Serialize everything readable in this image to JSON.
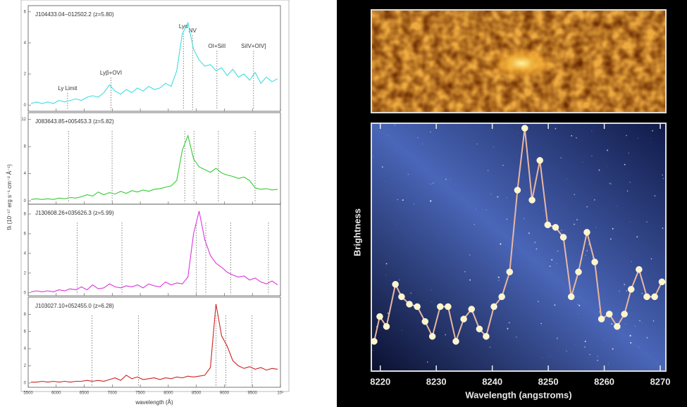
{
  "chart_data": [
    {
      "type": "line",
      "title": "J104433.04−012502.2 (z=5.80)",
      "ylabel": "fλ (10⁻¹⁷ erg s⁻¹ cm⁻² Å⁻¹)",
      "color": "#3fdede",
      "x": [
        5550,
        5650,
        5750,
        5850,
        5950,
        6050,
        6150,
        6250,
        6350,
        6450,
        6550,
        6650,
        6750,
        6850,
        6950,
        7050,
        7150,
        7250,
        7350,
        7450,
        7550,
        7650,
        7750,
        7850,
        7950,
        8050,
        8150,
        8250,
        8350,
        8450,
        8550,
        8650,
        8750,
        8850,
        8950,
        9050,
        9150,
        9250,
        9350,
        9450,
        9550,
        9650,
        9750,
        9850,
        9950
      ],
      "values": [
        0.1,
        0.2,
        0.1,
        0.2,
        0.1,
        0.3,
        0.2,
        0.3,
        0.4,
        0.3,
        0.5,
        0.6,
        0.5,
        0.8,
        1.3,
        0.9,
        0.7,
        1.0,
        0.8,
        1.1,
        0.9,
        1.2,
        1.0,
        1.1,
        1.4,
        1.2,
        2.2,
        4.6,
        5.3,
        3.6,
        2.9,
        2.5,
        2.6,
        2.2,
        2.4,
        1.9,
        2.3,
        1.8,
        2.0,
        1.6,
        2.1,
        1.4,
        1.8,
        1.5,
        1.7
      ],
      "xlim": [
        5500,
        10000
      ],
      "xticks": [
        5500,
        6000,
        6500,
        7000,
        7500,
        8000,
        8500,
        9000,
        9500,
        10000
      ],
      "ylim": [
        -0.4,
        6.4
      ],
      "yticks": [
        0,
        2,
        4,
        6
      ],
      "markers": [
        6202,
        6977,
        8269,
        8432,
        8867,
        9520
      ],
      "marker_labels": [
        "Ly Limit",
        "Lyβ+OVI",
        "Lyα",
        "NV",
        "OI+SiII",
        "SiIV+OIV]"
      ]
    },
    {
      "type": "line",
      "title": "J083643.85+005453.3 (z=5.82)",
      "color": "#33cc33",
      "x": [
        5550,
        5650,
        5750,
        5850,
        5950,
        6050,
        6150,
        6250,
        6350,
        6450,
        6550,
        6650,
        6750,
        6850,
        6950,
        7050,
        7150,
        7250,
        7350,
        7450,
        7550,
        7650,
        7750,
        7850,
        7950,
        8050,
        8150,
        8250,
        8350,
        8450,
        8550,
        8650,
        8750,
        8850,
        8950,
        9050,
        9150,
        9250,
        9350,
        9450,
        9550,
        9650,
        9750,
        9850,
        9950
      ],
      "values": [
        0.2,
        0.3,
        0.2,
        0.3,
        0.2,
        0.4,
        0.3,
        0.5,
        0.4,
        0.6,
        0.9,
        0.7,
        1.3,
        0.9,
        1.2,
        1.0,
        1.4,
        1.1,
        1.5,
        1.3,
        1.6,
        1.4,
        1.7,
        1.8,
        2.0,
        2.2,
        3.0,
        7.5,
        9.6,
        6.2,
        5.0,
        4.6,
        4.2,
        4.8,
        4.1,
        3.8,
        3.6,
        3.3,
        3.5,
        3.0,
        1.9,
        1.7,
        1.8,
        1.6,
        1.7
      ],
      "xlim": [
        5500,
        10000
      ],
      "xticks": [
        5500,
        6000,
        6500,
        7000,
        7500,
        8000,
        8500,
        9000,
        9500,
        10000
      ],
      "ylim": [
        -0.5,
        13
      ],
      "yticks": [
        0,
        4,
        8,
        12
      ],
      "markers": [
        6220,
        6997,
        8293,
        8457,
        8893,
        9548
      ]
    },
    {
      "type": "line",
      "title": "J130608.26+035626.3 (z=5.99)",
      "color": "#dd33dd",
      "x": [
        5550,
        5650,
        5750,
        5850,
        5950,
        6050,
        6150,
        6250,
        6350,
        6450,
        6550,
        6650,
        6750,
        6850,
        6950,
        7050,
        7150,
        7250,
        7350,
        7450,
        7550,
        7650,
        7750,
        7850,
        7950,
        8050,
        8150,
        8250,
        8350,
        8450,
        8550,
        8650,
        8750,
        8850,
        8950,
        9050,
        9150,
        9250,
        9350,
        9450,
        9550,
        9650,
        9750,
        9850,
        9950
      ],
      "values": [
        0.1,
        0.2,
        0.1,
        0.2,
        0.1,
        0.3,
        0.2,
        0.4,
        0.3,
        0.6,
        0.3,
        0.8,
        0.4,
        0.5,
        0.9,
        0.6,
        0.5,
        0.7,
        0.6,
        0.8,
        0.5,
        0.9,
        0.7,
        0.6,
        1.1,
        0.8,
        1.0,
        0.9,
        1.6,
        6.0,
        8.3,
        5.4,
        3.8,
        3.0,
        2.6,
        2.1,
        1.8,
        1.6,
        1.7,
        1.3,
        1.5,
        1.1,
        0.9,
        1.2,
        0.8
      ],
      "xlim": [
        5500,
        10000
      ],
      "xticks": [
        5500,
        6000,
        6500,
        7000,
        7500,
        8000,
        8500,
        9000,
        9500,
        10000
      ],
      "ylim": [
        -0.3,
        9
      ],
      "yticks": [
        0,
        2,
        4,
        6,
        8
      ],
      "markers": [
        6375,
        7172,
        8500,
        8668,
        9115,
        9786
      ]
    },
    {
      "type": "line",
      "title": "J103027.10+052455.0 (z=6.28)",
      "xlabel": "wavelength (Å)",
      "color": "#cc2222",
      "x": [
        5550,
        5650,
        5750,
        5850,
        5950,
        6050,
        6150,
        6250,
        6350,
        6450,
        6550,
        6650,
        6750,
        6850,
        6950,
        7050,
        7150,
        7250,
        7350,
        7450,
        7550,
        7650,
        7750,
        7850,
        7950,
        8050,
        8150,
        8250,
        8350,
        8450,
        8550,
        8650,
        8750,
        8850,
        8950,
        9050,
        9150,
        9250,
        9350,
        9450,
        9550,
        9650,
        9750,
        9850,
        9950
      ],
      "values": [
        0.1,
        0.1,
        0.2,
        0.1,
        0.2,
        0.1,
        0.2,
        0.1,
        0.2,
        0.2,
        0.3,
        0.2,
        0.3,
        0.2,
        0.4,
        0.6,
        0.3,
        0.9,
        0.5,
        0.7,
        0.4,
        0.5,
        0.6,
        0.4,
        0.6,
        0.5,
        0.7,
        0.6,
        0.8,
        0.7,
        0.8,
        0.9,
        1.8,
        9.2,
        5.5,
        4.3,
        2.6,
        2.0,
        1.7,
        1.9,
        1.6,
        1.8,
        1.5,
        1.7,
        1.6
      ],
      "xlim": [
        5500,
        10000
      ],
      "xticks": [
        5500,
        6000,
        6500,
        7000,
        7500,
        8000,
        8500,
        9000,
        9500,
        {
          "value": 10000,
          "label": "10⁴"
        }
      ],
      "ylim": [
        -0.5,
        10
      ],
      "yticks": [
        0,
        2,
        4,
        6,
        8
      ],
      "markers": [
        6639,
        7469,
        8852,
        9027,
        9493
      ]
    },
    {
      "type": "line",
      "xlabel": "Wavelength (angstroms)",
      "ylabel": "Brightness",
      "color": "#e9b7a0",
      "marker_color": "#fff6c8",
      "x": [
        8218.9,
        8219.9,
        8221.1,
        8222.7,
        8223.8,
        8225.2,
        8226.6,
        8228.0,
        8229.3,
        8230.7,
        8232.1,
        8233.5,
        8234.9,
        8236.3,
        8237.7,
        8238.9,
        8240.3,
        8241.7,
        8243.1,
        8244.5,
        8245.8,
        8247.1,
        8248.5,
        8249.9,
        8251.3,
        8252.7,
        8254.1,
        8255.4,
        8256.9,
        8258.3,
        8259.5,
        8260.9,
        8262.3,
        8263.6,
        8264.8,
        8266.2,
        8267.6,
        8269.0,
        8270.3
      ],
      "values": [
        12,
        22,
        18,
        35,
        30,
        27,
        26,
        20,
        14,
        26,
        26,
        12,
        21,
        25,
        17,
        14,
        26,
        30,
        40,
        73,
        98,
        69,
        85,
        59,
        58,
        54,
        30,
        40,
        56,
        44,
        21,
        23,
        18,
        23,
        33,
        41,
        30,
        30,
        36
      ],
      "xlim": [
        8218.4,
        8271
      ],
      "xticks": [
        8220,
        8230,
        8240,
        8250,
        8260,
        8270
      ],
      "ylim": [
        0,
        100
      ]
    }
  ]
}
